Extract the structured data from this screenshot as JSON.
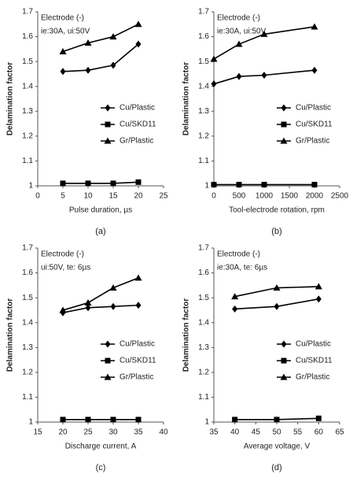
{
  "chart_data": [
    {
      "type": "line",
      "annotations": [
        "Electrode (-)",
        "ie:30A, ui:50V"
      ],
      "xlabel": "Pulse duration, µs",
      "ylabel": "Delamination factor",
      "caption": "(a)",
      "x": [
        5,
        10,
        15,
        20
      ],
      "xlim": [
        0,
        25
      ],
      "xticks": [
        0,
        5,
        10,
        15,
        20,
        25
      ],
      "ylim": [
        1,
        1.7
      ],
      "yticks": [
        1,
        1.1,
        1.2,
        1.3,
        1.4,
        1.5,
        1.6,
        1.7
      ],
      "legend": "right",
      "series": [
        {
          "name": "Cu/Plastic",
          "color": "#000000",
          "marker": "diamond",
          "values": [
            1.46,
            1.465,
            1.485,
            1.57
          ]
        },
        {
          "name": "Cu/SKD11",
          "color": "#000000",
          "marker": "square",
          "values": [
            1.01,
            1.01,
            1.01,
            1.015
          ]
        },
        {
          "name": "Gr/Plastic",
          "color": "#000000",
          "marker": "triangle",
          "values": [
            1.54,
            1.575,
            1.6,
            1.65
          ]
        }
      ]
    },
    {
      "type": "line",
      "annotations": [
        "Electrode (-)",
        "ie:30A, ui:50V"
      ],
      "xlabel": "Tool-electrode rotation, rpm",
      "ylabel": "Delamination factor",
      "caption": "(b)",
      "x": [
        0,
        500,
        1000,
        2000
      ],
      "xlim": [
        0,
        2500
      ],
      "xticks": [
        0,
        500,
        1000,
        1500,
        2000,
        2500
      ],
      "ylim": [
        1,
        1.7
      ],
      "yticks": [
        1,
        1.1,
        1.2,
        1.3,
        1.4,
        1.5,
        1.6,
        1.7
      ],
      "legend": "right",
      "series": [
        {
          "name": "Cu/Plastic",
          "color": "#000000",
          "marker": "diamond",
          "values": [
            1.41,
            1.44,
            1.445,
            1.465
          ]
        },
        {
          "name": "Cu/SKD11",
          "color": "#000000",
          "marker": "square",
          "values": [
            1.005,
            1.005,
            1.005,
            1.005
          ]
        },
        {
          "name": "Gr/Plastic",
          "color": "#000000",
          "marker": "triangle",
          "values": [
            1.51,
            1.57,
            1.61,
            1.64
          ]
        }
      ]
    },
    {
      "type": "line",
      "annotations": [
        "Electrode (-)",
        "ui:50V, te: 6µs"
      ],
      "xlabel": "Discharge current, A",
      "ylabel": "Delamination factor",
      "caption": "(c)",
      "x": [
        20,
        25,
        30,
        35
      ],
      "xlim": [
        15,
        40
      ],
      "xticks": [
        15,
        20,
        25,
        30,
        35,
        40
      ],
      "ylim": [
        1,
        1.7
      ],
      "yticks": [
        1,
        1.1,
        1.2,
        1.3,
        1.4,
        1.5,
        1.6,
        1.7
      ],
      "legend": "right",
      "series": [
        {
          "name": "Cu/Plastic",
          "color": "#000000",
          "marker": "diamond",
          "values": [
            1.44,
            1.46,
            1.465,
            1.47
          ]
        },
        {
          "name": "Cu/SKD11",
          "color": "#000000",
          "marker": "square",
          "values": [
            1.01,
            1.01,
            1.01,
            1.01
          ]
        },
        {
          "name": "Gr/Plastic",
          "color": "#000000",
          "marker": "triangle",
          "values": [
            1.45,
            1.48,
            1.54,
            1.58
          ]
        }
      ]
    },
    {
      "type": "line",
      "annotations": [
        "Electrode (-)",
        "ie:30A, te: 6µs"
      ],
      "xlabel": "Average voltage, V",
      "ylabel": "Delamination factor",
      "caption": "(d)",
      "x": [
        40,
        50,
        60
      ],
      "xlim": [
        35,
        65
      ],
      "xticks": [
        35,
        40,
        45,
        50,
        55,
        60,
        65
      ],
      "ylim": [
        1,
        1.7
      ],
      "yticks": [
        1,
        1.1,
        1.2,
        1.3,
        1.4,
        1.5,
        1.6,
        1.7
      ],
      "legend": "right",
      "series": [
        {
          "name": "Cu/Plastic",
          "color": "#000000",
          "marker": "diamond",
          "values": [
            1.455,
            1.465,
            1.495
          ]
        },
        {
          "name": "Cu/SKD11",
          "color": "#000000",
          "marker": "square",
          "values": [
            1.01,
            1.01,
            1.015
          ]
        },
        {
          "name": "Gr/Plastic",
          "color": "#000000",
          "marker": "triangle",
          "values": [
            1.505,
            1.54,
            1.545
          ]
        }
      ]
    }
  ]
}
